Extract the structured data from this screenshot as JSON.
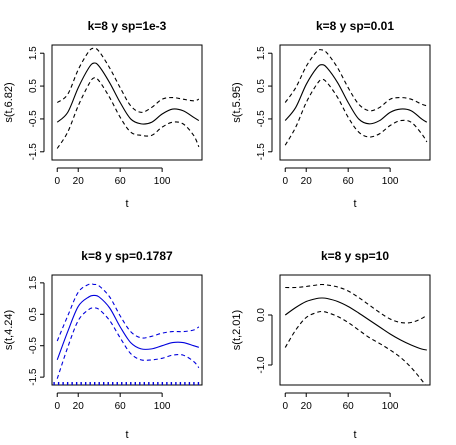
{
  "chart_data": [
    {
      "type": "line",
      "title": "k=8 y sp=1e-3",
      "xlabel": "t",
      "ylabel": "s(t,6.82)",
      "xlim": [
        -5,
        138
      ],
      "ylim": [
        -1.75,
        1.75
      ],
      "xticks": [
        0,
        20,
        60,
        100
      ],
      "yticks": [
        -1.5,
        -0.5,
        0.5,
        1.5
      ],
      "color": "#000000",
      "rug": false,
      "series": [
        {
          "style": "solid",
          "x": [
            0,
            10,
            20,
            30,
            35,
            40,
            50,
            60,
            70,
            80,
            90,
            100,
            110,
            120,
            130,
            135
          ],
          "y": [
            -0.6,
            -0.3,
            0.45,
            1.05,
            1.2,
            1.1,
            0.6,
            0.0,
            -0.5,
            -0.65,
            -0.6,
            -0.35,
            -0.2,
            -0.25,
            -0.45,
            -0.55
          ]
        },
        {
          "style": "dashed",
          "x": [
            0,
            10,
            20,
            30,
            35,
            40,
            50,
            60,
            70,
            80,
            90,
            100,
            110,
            120,
            130,
            135
          ],
          "y": [
            0.0,
            0.25,
            1.0,
            1.55,
            1.65,
            1.55,
            1.05,
            0.45,
            -0.1,
            -0.3,
            -0.15,
            0.1,
            0.15,
            0.1,
            0.05,
            0.1
          ]
        },
        {
          "style": "dashed",
          "x": [
            0,
            10,
            20,
            30,
            35,
            40,
            50,
            60,
            70,
            80,
            90,
            100,
            110,
            120,
            130,
            135
          ],
          "y": [
            -1.4,
            -0.9,
            -0.1,
            0.55,
            0.75,
            0.65,
            0.15,
            -0.45,
            -0.9,
            -1.0,
            -1.0,
            -0.75,
            -0.6,
            -0.65,
            -1.0,
            -1.35
          ]
        }
      ]
    },
    {
      "type": "line",
      "title": "k=8 y sp=0.01",
      "xlabel": "t",
      "ylabel": "s(t,5.95)",
      "xlim": [
        -5,
        138
      ],
      "ylim": [
        -1.75,
        1.75
      ],
      "xticks": [
        0,
        20,
        60,
        100
      ],
      "yticks": [
        -1.5,
        -0.5,
        0.5,
        1.5
      ],
      "color": "#000000",
      "rug": false,
      "series": [
        {
          "style": "solid",
          "x": [
            0,
            10,
            20,
            30,
            35,
            40,
            50,
            60,
            70,
            80,
            90,
            100,
            110,
            120,
            130,
            135
          ],
          "y": [
            -0.55,
            -0.15,
            0.55,
            1.05,
            1.15,
            1.05,
            0.6,
            0.0,
            -0.5,
            -0.65,
            -0.55,
            -0.3,
            -0.2,
            -0.25,
            -0.5,
            -0.6
          ]
        },
        {
          "style": "dashed",
          "x": [
            0,
            10,
            20,
            30,
            35,
            40,
            50,
            60,
            70,
            80,
            90,
            100,
            110,
            120,
            130,
            135
          ],
          "y": [
            0.0,
            0.45,
            1.1,
            1.55,
            1.6,
            1.5,
            1.05,
            0.45,
            -0.05,
            -0.25,
            -0.15,
            0.1,
            0.15,
            0.1,
            -0.05,
            -0.1
          ]
        },
        {
          "style": "dashed",
          "x": [
            0,
            10,
            20,
            30,
            35,
            40,
            50,
            60,
            70,
            80,
            90,
            100,
            110,
            120,
            130,
            135
          ],
          "y": [
            -1.3,
            -0.75,
            0.0,
            0.55,
            0.7,
            0.6,
            0.15,
            -0.45,
            -0.9,
            -1.05,
            -0.95,
            -0.7,
            -0.55,
            -0.6,
            -0.95,
            -1.2
          ]
        }
      ]
    },
    {
      "type": "line",
      "title": "k=8 y sp=0.1787",
      "xlabel": "t",
      "ylabel": "s(t,4.24)",
      "xlim": [
        -5,
        138
      ],
      "ylim": [
        -1.75,
        1.75
      ],
      "xticks": [
        0,
        20,
        60,
        100
      ],
      "yticks": [
        -1.5,
        -0.5,
        0.5,
        1.5
      ],
      "color": "#0000dd",
      "rug": true,
      "series": [
        {
          "style": "solid",
          "x": [
            0,
            10,
            20,
            30,
            35,
            40,
            50,
            60,
            70,
            80,
            90,
            100,
            110,
            120,
            130,
            135
          ],
          "y": [
            -0.95,
            -0.05,
            0.75,
            1.05,
            1.1,
            1.05,
            0.7,
            0.1,
            -0.4,
            -0.6,
            -0.6,
            -0.5,
            -0.4,
            -0.4,
            -0.5,
            -0.55
          ]
        },
        {
          "style": "dashed",
          "x": [
            0,
            10,
            20,
            30,
            35,
            40,
            50,
            60,
            70,
            80,
            90,
            100,
            110,
            120,
            130,
            135
          ],
          "y": [
            -0.35,
            0.45,
            1.2,
            1.45,
            1.45,
            1.4,
            1.05,
            0.45,
            -0.05,
            -0.25,
            -0.2,
            -0.1,
            -0.05,
            -0.05,
            0.0,
            0.1
          ]
        },
        {
          "style": "dashed",
          "x": [
            0,
            10,
            20,
            30,
            35,
            40,
            50,
            60,
            70,
            80,
            90,
            100,
            110,
            120,
            130,
            135
          ],
          "y": [
            -1.55,
            -0.55,
            0.3,
            0.65,
            0.7,
            0.65,
            0.3,
            -0.25,
            -0.75,
            -0.95,
            -0.95,
            -0.9,
            -0.8,
            -0.8,
            -1.0,
            -1.2
          ]
        }
      ]
    },
    {
      "type": "line",
      "title": "k=8 y sp=10",
      "xlabel": "t",
      "ylabel": "s(t,2.01)",
      "xlim": [
        -5,
        138
      ],
      "ylim": [
        -1.4,
        0.8
      ],
      "xticks": [
        0,
        20,
        60,
        100
      ],
      "yticks": [
        -1.0,
        0.0
      ],
      "ytick_labels": [
        "-1.0",
        "0.0"
      ],
      "color": "#000000",
      "rug": false,
      "series": [
        {
          "style": "solid",
          "x": [
            0,
            10,
            20,
            30,
            35,
            40,
            50,
            60,
            70,
            80,
            90,
            100,
            110,
            120,
            130,
            135
          ],
          "y": [
            0.0,
            0.15,
            0.27,
            0.33,
            0.34,
            0.33,
            0.27,
            0.17,
            0.04,
            -0.1,
            -0.24,
            -0.38,
            -0.5,
            -0.6,
            -0.68,
            -0.7
          ]
        },
        {
          "style": "dashed",
          "x": [
            0,
            10,
            20,
            30,
            35,
            40,
            50,
            60,
            70,
            80,
            90,
            100,
            110,
            120,
            130,
            135
          ],
          "y": [
            0.55,
            0.55,
            0.57,
            0.6,
            0.61,
            0.6,
            0.56,
            0.48,
            0.35,
            0.2,
            0.05,
            -0.08,
            -0.15,
            -0.15,
            -0.07,
            0.0
          ]
        },
        {
          "style": "dashed",
          "x": [
            0,
            10,
            20,
            30,
            35,
            40,
            50,
            60,
            70,
            80,
            90,
            100,
            110,
            120,
            130,
            135
          ],
          "y": [
            -0.65,
            -0.3,
            -0.05,
            0.05,
            0.07,
            0.05,
            -0.03,
            -0.15,
            -0.3,
            -0.45,
            -0.57,
            -0.7,
            -0.85,
            -1.05,
            -1.3,
            -1.45
          ]
        }
      ]
    }
  ]
}
